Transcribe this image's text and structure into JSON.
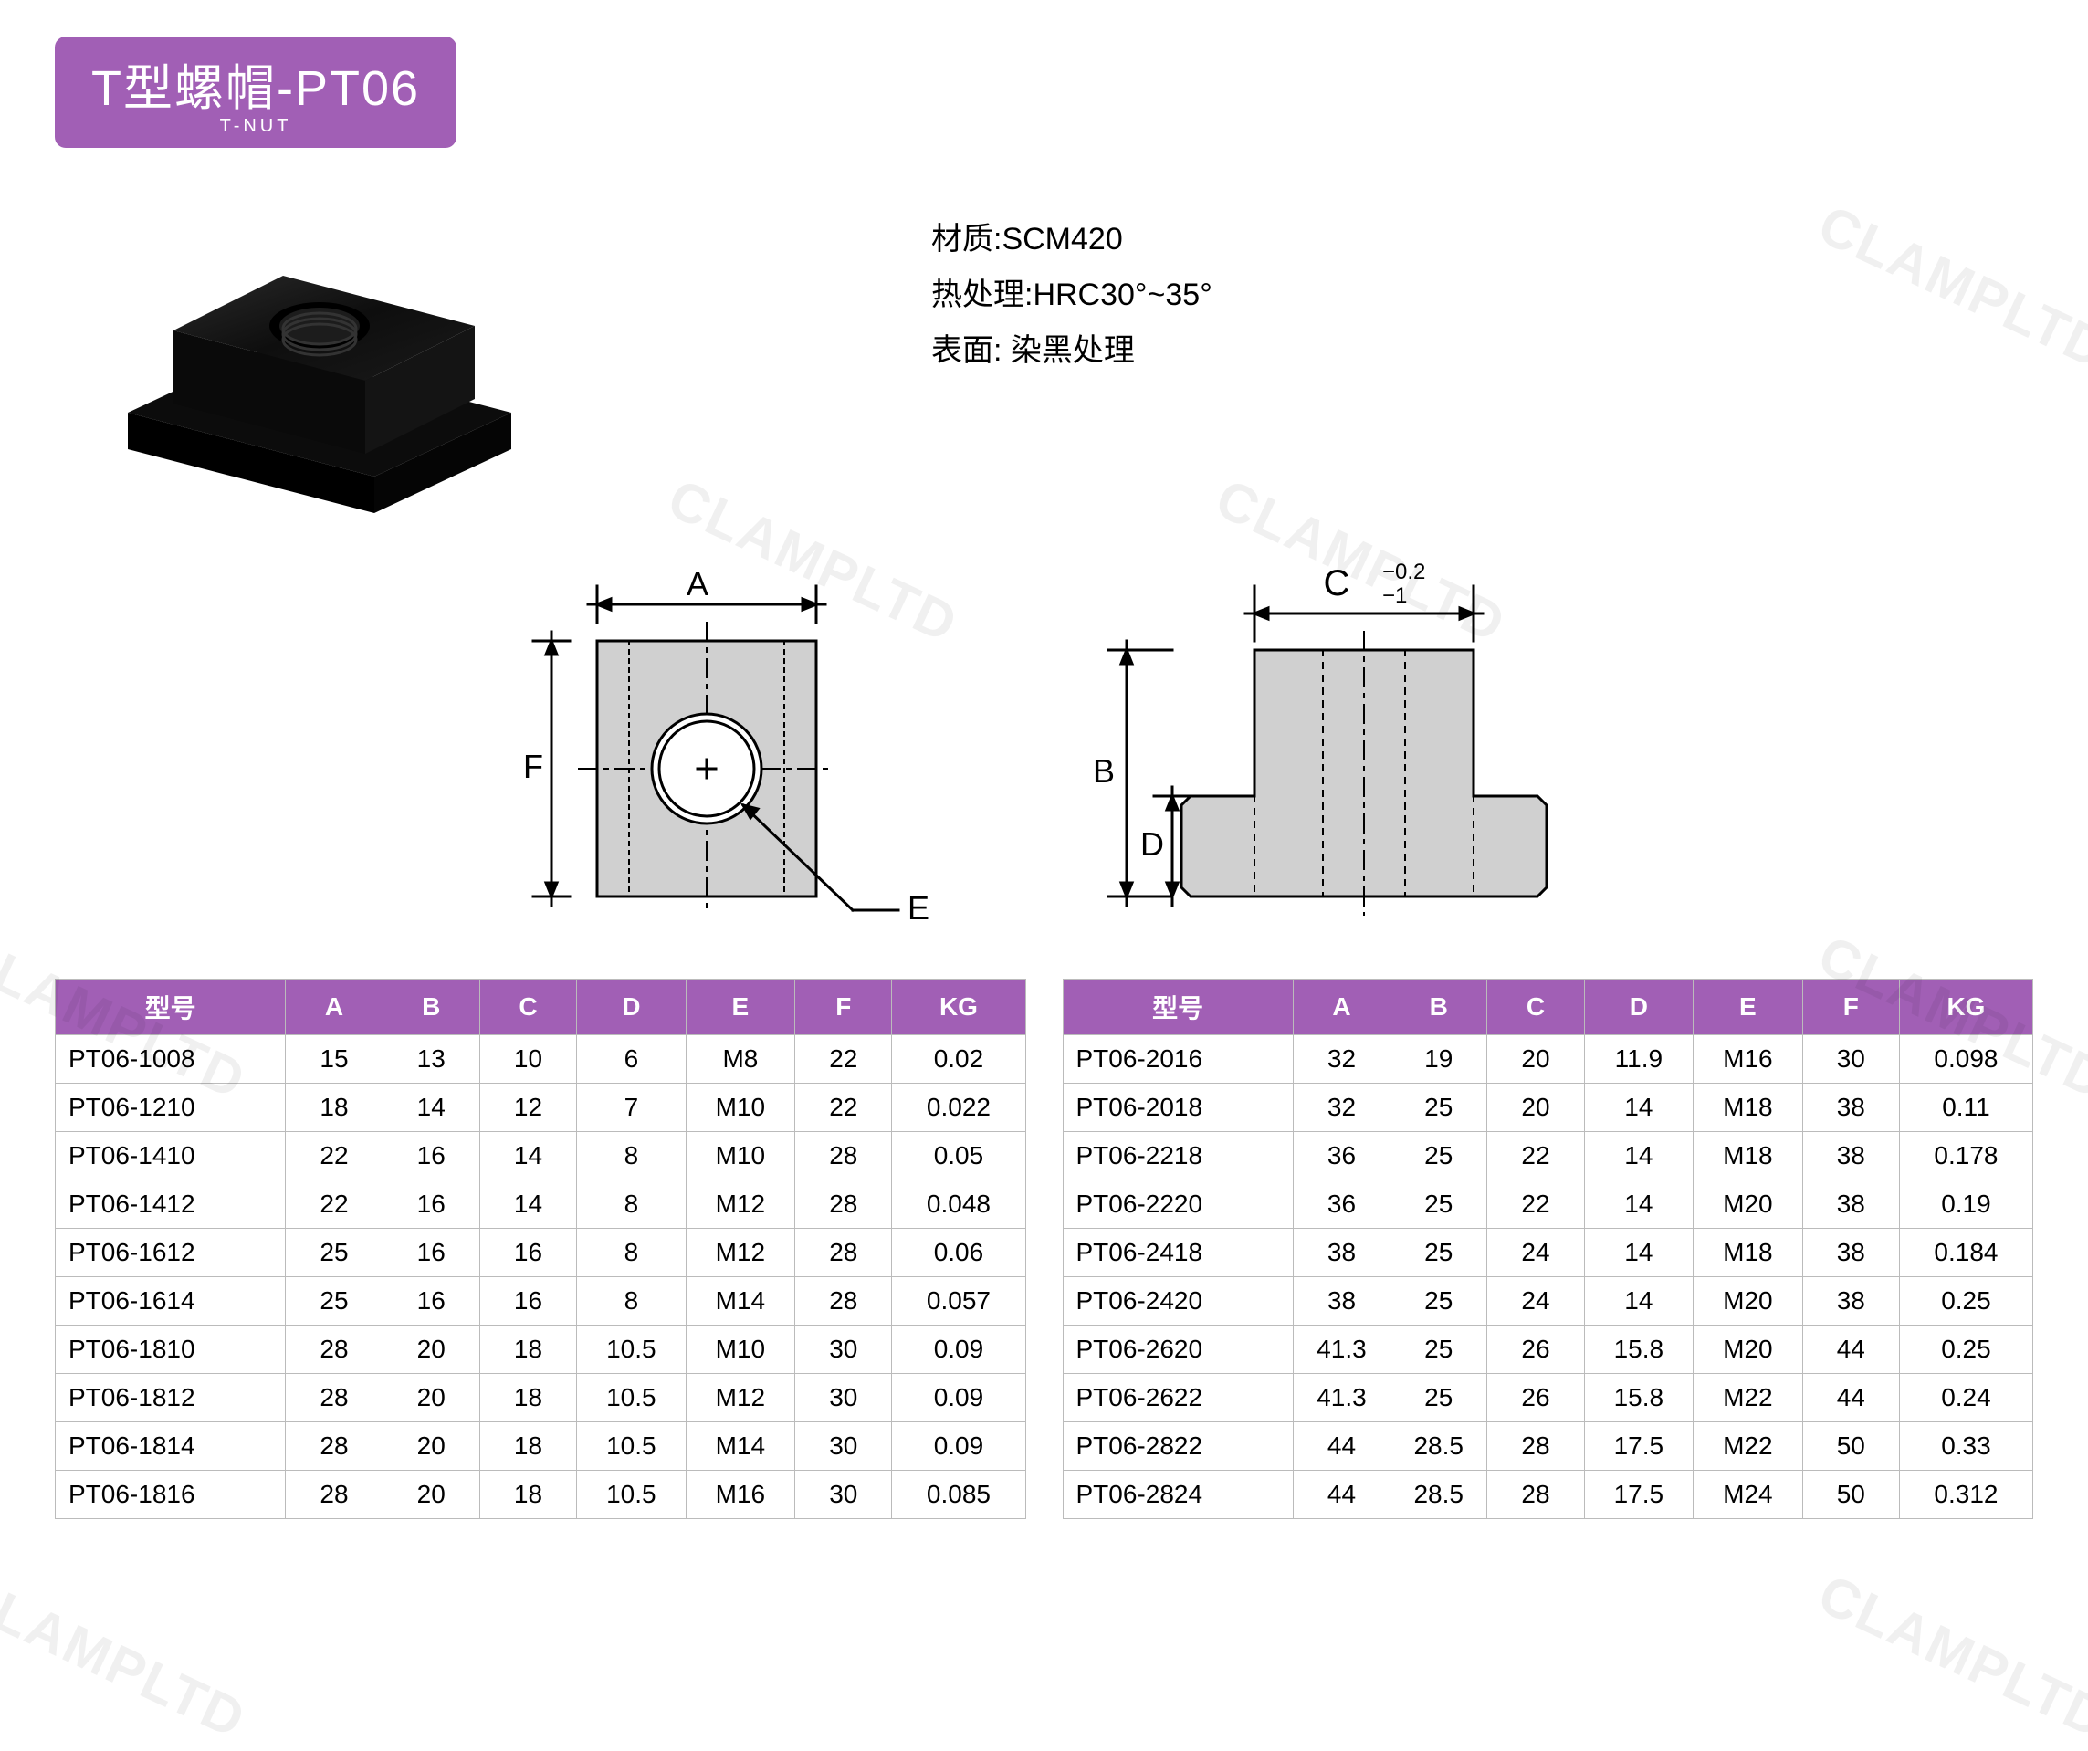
{
  "title": {
    "main": "T型螺帽-PT06",
    "sub": "T-NUT"
  },
  "specs": {
    "material_label": "材质:",
    "material_value": "SCM420",
    "heat_label": "热处理:",
    "heat_value": "HRC30°~35°",
    "surface_label": "表面:",
    "surface_value": "染黑处理"
  },
  "diagram": {
    "top": {
      "labels": {
        "A": "A",
        "F": "F",
        "E": "E"
      }
    },
    "side": {
      "labels": {
        "C": "C",
        "C_tol_top": "−0.2",
        "C_tol_bot": "−1",
        "B": "B",
        "D": "D"
      }
    }
  },
  "tables": {
    "columns": [
      "型号",
      "A",
      "B",
      "C",
      "D",
      "E",
      "F",
      "KG"
    ],
    "col_widths": [
      "190px",
      "80px",
      "80px",
      "80px",
      "90px",
      "90px",
      "80px",
      "110px"
    ],
    "left": [
      [
        "PT06-1008",
        "15",
        "13",
        "10",
        "6",
        "M8",
        "22",
        "0.02"
      ],
      [
        "PT06-1210",
        "18",
        "14",
        "12",
        "7",
        "M10",
        "22",
        "0.022"
      ],
      [
        "PT06-1410",
        "22",
        "16",
        "14",
        "8",
        "M10",
        "28",
        "0.05"
      ],
      [
        "PT06-1412",
        "22",
        "16",
        "14",
        "8",
        "M12",
        "28",
        "0.048"
      ],
      [
        "PT06-1612",
        "25",
        "16",
        "16",
        "8",
        "M12",
        "28",
        "0.06"
      ],
      [
        "PT06-1614",
        "25",
        "16",
        "16",
        "8",
        "M14",
        "28",
        "0.057"
      ],
      [
        "PT06-1810",
        "28",
        "20",
        "18",
        "10.5",
        "M10",
        "30",
        "0.09"
      ],
      [
        "PT06-1812",
        "28",
        "20",
        "18",
        "10.5",
        "M12",
        "30",
        "0.09"
      ],
      [
        "PT06-1814",
        "28",
        "20",
        "18",
        "10.5",
        "M14",
        "30",
        "0.09"
      ],
      [
        "PT06-1816",
        "28",
        "20",
        "18",
        "10.5",
        "M16",
        "30",
        "0.085"
      ]
    ],
    "right": [
      [
        "PT06-2016",
        "32",
        "19",
        "20",
        "11.9",
        "M16",
        "30",
        "0.098"
      ],
      [
        "PT06-2018",
        "32",
        "25",
        "20",
        "14",
        "M18",
        "38",
        "0.11"
      ],
      [
        "PT06-2218",
        "36",
        "25",
        "22",
        "14",
        "M18",
        "38",
        "0.178"
      ],
      [
        "PT06-2220",
        "36",
        "25",
        "22",
        "14",
        "M20",
        "38",
        "0.19"
      ],
      [
        "PT06-2418",
        "38",
        "25",
        "24",
        "14",
        "M18",
        "38",
        "0.184"
      ],
      [
        "PT06-2420",
        "38",
        "25",
        "24",
        "14",
        "M20",
        "38",
        "0.25"
      ],
      [
        "PT06-2620",
        "41.3",
        "25",
        "26",
        "15.8",
        "M20",
        "44",
        "0.25"
      ],
      [
        "PT06-2622",
        "41.3",
        "25",
        "26",
        "15.8",
        "M22",
        "44",
        "0.24"
      ],
      [
        "PT06-2822",
        "44",
        "28.5",
        "28",
        "17.5",
        "M22",
        "50",
        "0.33"
      ],
      [
        "PT06-2824",
        "44",
        "28.5",
        "28",
        "17.5",
        "M24",
        "50",
        "0.312"
      ]
    ]
  },
  "colors": {
    "accent": "#a15fb5",
    "border": "#bbbbbb",
    "drawing_fill": "#d0d0d0",
    "drawing_stroke": "#000000"
  },
  "watermark": {
    "text": "CLAMPLTD"
  }
}
